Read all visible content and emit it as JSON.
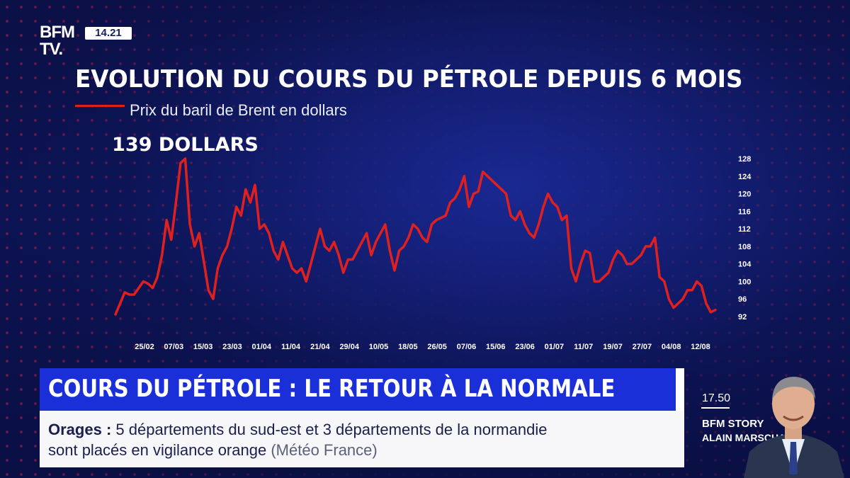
{
  "channel": {
    "logo_line1": "BFM",
    "logo_line2": "TV.",
    "clock": "14.21"
  },
  "chart_header": {
    "title": "EVOLUTION DU COURS DU PÉTROLE DEPUIS 6 MOIS",
    "legend": "Prix du baril de Brent en dollars"
  },
  "chart_data": {
    "type": "line",
    "title": "EVOLUTION DU COURS DU PÉTROLE DEPUIS 6 MOIS",
    "ylim": [
      92,
      128
    ],
    "yticks": [
      128,
      124,
      120,
      116,
      112,
      108,
      104,
      100,
      96,
      92
    ],
    "x_tick_labels": [
      "25/02",
      "07/03",
      "15/03",
      "23/03",
      "01/04",
      "11/04",
      "21/04",
      "29/04",
      "10/05",
      "18/05",
      "26/05",
      "07/06",
      "15/06",
      "23/06",
      "01/07",
      "11/07",
      "19/07",
      "27/07",
      "04/08",
      "12/08"
    ],
    "annotation": "139 DOLLARS",
    "series": [
      {
        "name": "Prix du baril de Brent en dollars",
        "color": "#e0201e",
        "values": [
          92.5,
          95,
          97.5,
          97,
          97,
          98.5,
          100,
          99.5,
          98.5,
          101,
          106,
          114,
          109.5,
          118,
          127,
          128,
          113,
          108,
          111,
          104.5,
          98,
          96,
          103,
          106,
          108,
          112,
          117,
          115,
          121,
          118,
          122,
          112,
          113,
          111,
          107,
          105,
          109,
          106,
          103,
          102,
          103,
          100,
          104,
          108,
          112,
          108,
          107,
          109,
          106,
          102,
          105,
          105,
          107,
          109,
          111,
          106,
          109,
          111,
          113,
          107,
          102.5,
          107,
          108,
          110,
          113,
          112,
          110,
          109,
          113,
          114,
          114.5,
          115,
          118,
          119,
          121,
          124,
          117,
          120,
          120.5,
          125,
          124,
          123,
          122,
          121,
          120,
          115,
          114,
          116,
          113,
          111,
          110,
          113,
          117,
          120,
          118,
          117,
          114,
          115,
          103,
          100,
          104,
          107,
          106.5,
          100,
          100,
          101,
          102,
          105,
          107,
          106,
          104,
          104,
          105,
          106,
          108,
          108,
          110,
          101,
          100,
          96,
          94,
          95,
          96,
          98,
          98,
          100,
          99,
          95,
          93,
          93.5
        ]
      }
    ]
  },
  "headline": {
    "text": "COURS DU PÉTROLE : LE RETOUR À LA NORMALE"
  },
  "ticker": {
    "label": "Orages",
    "separator": ":",
    "line1_text": "5 départements du sud-est et 3 départements de la normandie",
    "line2_text": "sont placés en vigilance orange",
    "source": "(Météo France)"
  },
  "show": {
    "time": "17.50",
    "name": "BFM STORY",
    "host": "ALAIN MARSCHALL"
  }
}
